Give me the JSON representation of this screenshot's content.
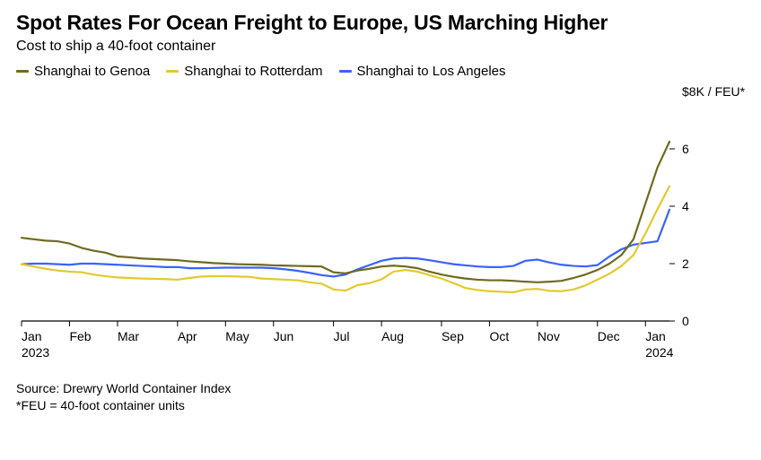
{
  "title": "Spot Rates For Ocean Freight to Europe, US Marching Higher",
  "subtitle": "Cost to ship a 40-foot container",
  "legend": {
    "s1": {
      "label": "Shanghai to Genoa",
      "color": "#6f6a1f"
    },
    "s2": {
      "label": "Shanghai to Rotterdam",
      "color": "#e3c92f"
    },
    "s3": {
      "label": "Shanghai to Los Angeles",
      "color": "#3a62ff"
    }
  },
  "footnote_line1": "Source: Drewry World Container Index",
  "footnote_line2": "*FEU = 40-foot container units",
  "chart": {
    "type": "line",
    "line_width": 2.2,
    "background_color": "#ffffff",
    "axis_color": "#000000",
    "tick_color": "#000000",
    "tick_font_size": 14,
    "y": {
      "min": 0,
      "max": 8,
      "ticks": [
        0,
        2,
        4,
        6
      ],
      "top_label": "$8K / FEU*"
    },
    "x": {
      "min": 0,
      "max": 54,
      "month_starts": [
        0,
        4,
        8,
        13,
        17,
        21,
        26,
        30,
        35,
        39,
        43,
        48,
        52
      ],
      "month_labels": [
        "Jan",
        "Feb",
        "Mar",
        "Apr",
        "May",
        "Jun",
        "Jul",
        "Aug",
        "Sep",
        "Oct",
        "Nov",
        "Dec",
        "Jan"
      ],
      "year_left": "2023",
      "year_right": "2024"
    },
    "series": {
      "s1": [
        2.9,
        2.85,
        2.8,
        2.78,
        2.7,
        2.55,
        2.45,
        2.38,
        2.25,
        2.22,
        2.18,
        2.16,
        2.14,
        2.12,
        2.08,
        2.05,
        2.02,
        2.0,
        1.98,
        1.97,
        1.96,
        1.94,
        1.93,
        1.92,
        1.91,
        1.9,
        1.7,
        1.66,
        1.76,
        1.82,
        1.9,
        1.93,
        1.9,
        1.84,
        1.72,
        1.62,
        1.54,
        1.48,
        1.44,
        1.42,
        1.42,
        1.4,
        1.37,
        1.35,
        1.37,
        1.4,
        1.5,
        1.62,
        1.78,
        2.0,
        2.3,
        2.85,
        4.1,
        5.35,
        6.25
      ],
      "s2": [
        1.98,
        1.9,
        1.82,
        1.76,
        1.72,
        1.7,
        1.62,
        1.56,
        1.52,
        1.5,
        1.48,
        1.47,
        1.46,
        1.44,
        1.5,
        1.55,
        1.56,
        1.56,
        1.55,
        1.54,
        1.48,
        1.46,
        1.44,
        1.42,
        1.35,
        1.3,
        1.1,
        1.06,
        1.25,
        1.32,
        1.45,
        1.72,
        1.78,
        1.72,
        1.6,
        1.48,
        1.32,
        1.15,
        1.08,
        1.04,
        1.02,
        1.0,
        1.1,
        1.12,
        1.05,
        1.04,
        1.1,
        1.24,
        1.44,
        1.65,
        1.92,
        2.3,
        3.05,
        3.9,
        4.7
      ],
      "s3": [
        1.98,
        2.0,
        2.0,
        1.98,
        1.96,
        2.0,
        2.0,
        1.98,
        1.96,
        1.94,
        1.92,
        1.9,
        1.88,
        1.88,
        1.84,
        1.84,
        1.85,
        1.86,
        1.86,
        1.86,
        1.86,
        1.84,
        1.8,
        1.75,
        1.68,
        1.6,
        1.55,
        1.62,
        1.8,
        1.95,
        2.1,
        2.18,
        2.2,
        2.18,
        2.12,
        2.05,
        1.98,
        1.94,
        1.9,
        1.88,
        1.88,
        1.92,
        2.1,
        2.14,
        2.04,
        1.96,
        1.92,
        1.9,
        1.95,
        2.25,
        2.5,
        2.66,
        2.72,
        2.78,
        3.88
      ]
    }
  }
}
